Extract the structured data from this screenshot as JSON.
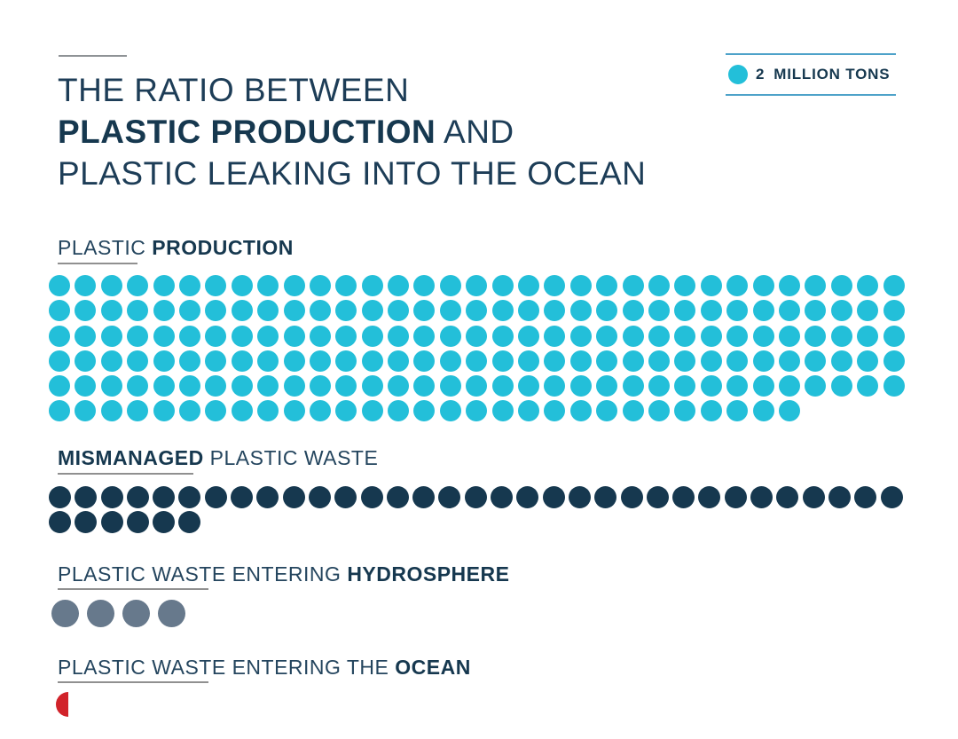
{
  "title": {
    "line1": "THE RATIO BETWEEN",
    "line2_bold": "PLASTIC PRODUCTION",
    "line2_rest": " AND",
    "line3": "PLASTIC LEAKING INTO THE OCEAN"
  },
  "legend": {
    "value": "2",
    "unit_label": "MILLION TONS",
    "tons_per_dot": 2,
    "dot_color": "#23bfd9"
  },
  "colors": {
    "title_navy": "#1d3d57",
    "bold_navy": "#16384f",
    "cyan": "#23bfd9",
    "dark_navy": "#16384f",
    "slate_gray": "#67798c",
    "red": "#d1232a",
    "legend_border_blue": "#4ea2c9",
    "rule_gray": "#909090"
  },
  "chart_data": {
    "type": "pictogram-dot-matrix",
    "title": "THE RATIO BETWEEN PLASTIC PRODUCTION AND PLASTIC LEAKING INTO THE OCEAN",
    "unit": "million tons",
    "tons_per_dot": 2,
    "legend_label": "2 MILLION TONS",
    "series": [
      {
        "key": "production",
        "name": "PLASTIC PRODUCTION",
        "label_prefix": "PLASTIC ",
        "label_bold": "PRODUCTION",
        "label_suffix": "",
        "rows": [
          33,
          33,
          33,
          33,
          33,
          29
        ],
        "dots": 194,
        "million_tons": 388,
        "color": "#23bfd9"
      },
      {
        "key": "mismanaged",
        "name": "MISMANAGED PLASTIC WASTE",
        "label_prefix": "",
        "label_bold": "MISMANAGED",
        "label_suffix": " PLASTIC WASTE",
        "rows": [
          33,
          6
        ],
        "dots": 39,
        "million_tons": 78,
        "color": "#16384f"
      },
      {
        "key": "hydrosphere",
        "name": "PLASTIC WASTE ENTERING HYDROSPHERE",
        "label_prefix": "PLASTIC WASTE ENTERING ",
        "label_bold": "HYDROSPHERE",
        "label_suffix": "",
        "rows": [
          4
        ],
        "dots": 4,
        "million_tons": 8,
        "color": "#67798c"
      },
      {
        "key": "ocean",
        "name": "PLASTIC WASTE ENTERING THE OCEAN",
        "label_prefix": "PLASTIC WASTE ENTERING THE ",
        "label_bold": "OCEAN",
        "label_suffix": "",
        "rows": [
          0.5
        ],
        "dots": 0.5,
        "million_tons": 1,
        "color": "#d1232a"
      }
    ]
  }
}
